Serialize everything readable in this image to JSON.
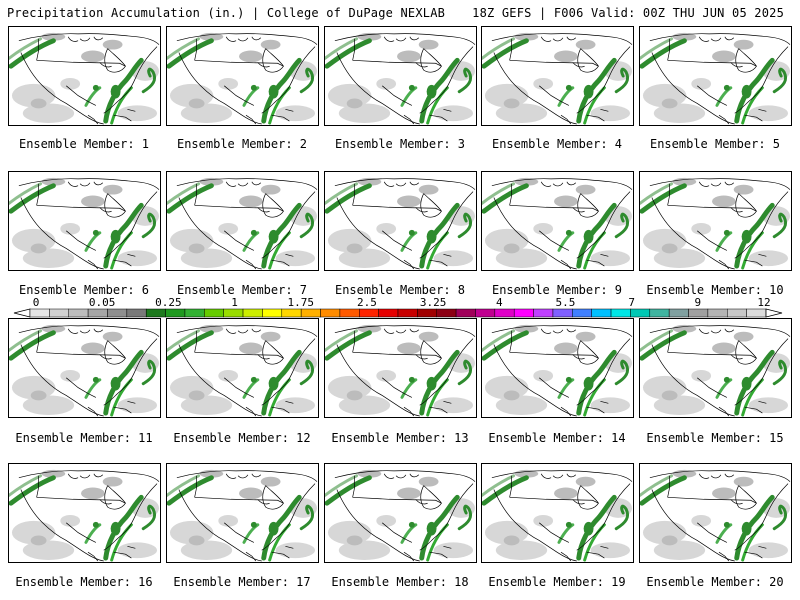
{
  "header": {
    "title": "Precipitation Accumulation (in.) | College of DuPage NEXLAB",
    "run_info": "18Z GEFS | F006 Valid: 00Z THU JUN 05 2025"
  },
  "caption_prefix": "Ensemble Member: ",
  "members": [
    {
      "label": "Ensemble Member: 1",
      "member": 1
    },
    {
      "label": "Ensemble Member: 2",
      "member": 2
    },
    {
      "label": "Ensemble Member: 3",
      "member": 3
    },
    {
      "label": "Ensemble Member: 4",
      "member": 4
    },
    {
      "label": "Ensemble Member: 5",
      "member": 5
    },
    {
      "label": "Ensemble Member: 6",
      "member": 6
    },
    {
      "label": "Ensemble Member: 7",
      "member": 7
    },
    {
      "label": "Ensemble Member: 8",
      "member": 8
    },
    {
      "label": "Ensemble Member: 9",
      "member": 9
    },
    {
      "label": "Ensemble Member: 10",
      "member": 10
    },
    {
      "label": "Ensemble Member: 11",
      "member": 11
    },
    {
      "label": "Ensemble Member: 12",
      "member": 12
    },
    {
      "label": "Ensemble Member: 13",
      "member": 13
    },
    {
      "label": "Ensemble Member: 14",
      "member": 14
    },
    {
      "label": "Ensemble Member: 15",
      "member": 15
    },
    {
      "label": "Ensemble Member: 16",
      "member": 16
    },
    {
      "label": "Ensemble Member: 17",
      "member": 17
    },
    {
      "label": "Ensemble Member: 18",
      "member": 18
    },
    {
      "label": "Ensemble Member: 19",
      "member": 19
    },
    {
      "label": "Ensemble Member: 20",
      "member": 20
    }
  ],
  "colorbar": {
    "tick_labels": [
      "0",
      "0.05",
      "0.25",
      "1",
      "1.75",
      "2.5",
      "3.25",
      "4",
      "5.5",
      "7",
      "9",
      "12"
    ],
    "colors": [
      "#e6e6e6",
      "#d2d2d2",
      "#bdbdbd",
      "#a6a6a6",
      "#8f8f8f",
      "#7a7a7a",
      "#1e7a1e",
      "#1f9a1f",
      "#33b233",
      "#66cc00",
      "#99dd00",
      "#ccee00",
      "#ffff00",
      "#ffd700",
      "#ffb000",
      "#ff8c00",
      "#ff5a00",
      "#ff2400",
      "#e60000",
      "#c80000",
      "#a00000",
      "#8c0014",
      "#a0005a",
      "#c00090",
      "#e000c8",
      "#ff00ff",
      "#c040ff",
      "#8060ff",
      "#4080ff",
      "#00c0ff",
      "#00e6e6",
      "#00c8b4",
      "#40b4a0",
      "#80a0a0",
      "#a0a0a0",
      "#b4b4b4",
      "#c8c8c8",
      "#dcdcdc"
    ]
  }
}
